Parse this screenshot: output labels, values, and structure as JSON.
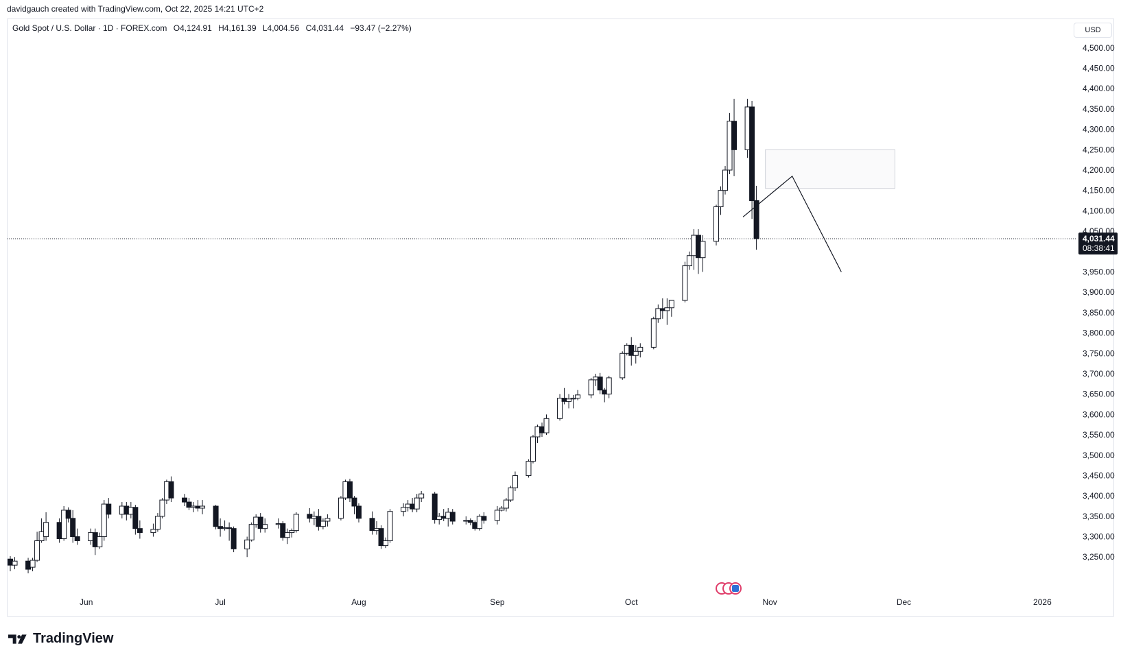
{
  "credit": "davidgauch created with TradingView.com, Oct 22, 2025 14:21 UTC+2",
  "legend": {
    "symbol": "Gold Spot / U.S. Dollar · 1D · FOREX.com",
    "open": "O4,124.91",
    "high": "H4,161.39",
    "low": "L4,004.56",
    "close": "C4,031.44",
    "change": "−93.47 (−2.27%)"
  },
  "currency_button": "USD",
  "last_price_label": {
    "price": "4,031.44",
    "countdown": "08:38:41"
  },
  "brand": "TradingView",
  "chart_data": {
    "type": "candlestick",
    "y_range": [
      3210,
      4530
    ],
    "y_ticks": [
      3250,
      3300,
      3350,
      3400,
      3450,
      3500,
      3550,
      3600,
      3650,
      3700,
      3750,
      3800,
      3850,
      3900,
      3950,
      4050,
      4100,
      4150,
      4200,
      4250,
      4300,
      4350,
      4400,
      4450,
      4500
    ],
    "y_tick_labels": [
      "3,250.00",
      "3,300.00",
      "3,350.00",
      "3,400.00",
      "3,450.00",
      "3,500.00",
      "3,550.00",
      "3,600.00",
      "3,650.00",
      "3,700.00",
      "3,750.00",
      "3,800.00",
      "3,850.00",
      "3,900.00",
      "3,950.00",
      "4,050.00",
      "4,100.00",
      "4,150.00",
      "4,200.00",
      "4,250.00",
      "4,300.00",
      "4,350.00",
      "4,400.00",
      "4,450.00",
      "4,500.00"
    ],
    "x_range": [
      "2025-05-15",
      "2026-01-08"
    ],
    "x_ticks": [
      {
        "date": "2025-06-01",
        "label": "Jun"
      },
      {
        "date": "2025-07-01",
        "label": "Jul"
      },
      {
        "date": "2025-08-01",
        "label": "Aug"
      },
      {
        "date": "2025-09-01",
        "label": "Sep"
      },
      {
        "date": "2025-10-01",
        "label": "Oct"
      },
      {
        "date": "2025-11-01",
        "label": "Nov"
      },
      {
        "date": "2025-12-01",
        "label": "Dec"
      },
      {
        "date": "2026-01-01",
        "label": "2026"
      }
    ],
    "last_close": 4031.44,
    "candles": [
      {
        "date": "2025-05-15",
        "o": 3245,
        "h": 3252,
        "l": 3215,
        "c": 3230
      },
      {
        "date": "2025-05-16",
        "o": 3230,
        "h": 3250,
        "l": 3220,
        "c": 3240
      },
      {
        "date": "2025-05-19",
        "o": 3240,
        "h": 3248,
        "l": 3210,
        "c": 3220
      },
      {
        "date": "2025-05-20",
        "o": 3225,
        "h": 3248,
        "l": 3215,
        "c": 3242
      },
      {
        "date": "2025-05-21",
        "o": 3242,
        "h": 3312,
        "l": 3238,
        "c": 3290
      },
      {
        "date": "2025-05-22",
        "o": 3290,
        "h": 3345,
        "l": 3285,
        "c": 3312
      },
      {
        "date": "2025-05-23",
        "o": 3300,
        "h": 3360,
        "l": 3290,
        "c": 3335
      },
      {
        "date": "2025-05-26",
        "o": 3335,
        "h": 3345,
        "l": 3285,
        "c": 3295
      },
      {
        "date": "2025-05-27",
        "o": 3295,
        "h": 3375,
        "l": 3290,
        "c": 3365
      },
      {
        "date": "2025-05-28",
        "o": 3365,
        "h": 3372,
        "l": 3335,
        "c": 3345
      },
      {
        "date": "2025-05-29",
        "o": 3345,
        "h": 3365,
        "l": 3285,
        "c": 3300
      },
      {
        "date": "2025-05-30",
        "o": 3300,
        "h": 3320,
        "l": 3280,
        "c": 3290
      },
      {
        "date": "2025-06-02",
        "o": 3290,
        "h": 3320,
        "l": 3280,
        "c": 3310
      },
      {
        "date": "2025-06-03",
        "o": 3310,
        "h": 3320,
        "l": 3255,
        "c": 3275
      },
      {
        "date": "2025-06-04",
        "o": 3275,
        "h": 3310,
        "l": 3270,
        "c": 3300
      },
      {
        "date": "2025-06-05",
        "o": 3300,
        "h": 3390,
        "l": 3290,
        "c": 3380
      },
      {
        "date": "2025-06-06",
        "o": 3380,
        "h": 3395,
        "l": 3345,
        "c": 3355
      },
      {
        "date": "2025-06-09",
        "o": 3355,
        "h": 3385,
        "l": 3345,
        "c": 3375
      },
      {
        "date": "2025-06-10",
        "o": 3375,
        "h": 3385,
        "l": 3340,
        "c": 3355
      },
      {
        "date": "2025-06-11",
        "o": 3355,
        "h": 3385,
        "l": 3345,
        "c": 3372
      },
      {
        "date": "2025-06-12",
        "o": 3372,
        "h": 3378,
        "l": 3305,
        "c": 3320
      },
      {
        "date": "2025-06-13",
        "o": 3320,
        "h": 3340,
        "l": 3295,
        "c": 3310
      },
      {
        "date": "2025-06-16",
        "o": 3310,
        "h": 3332,
        "l": 3300,
        "c": 3318
      },
      {
        "date": "2025-06-17",
        "o": 3318,
        "h": 3358,
        "l": 3312,
        "c": 3350
      },
      {
        "date": "2025-06-18",
        "o": 3350,
        "h": 3395,
        "l": 3345,
        "c": 3390
      },
      {
        "date": "2025-06-19",
        "o": 3390,
        "h": 3440,
        "l": 3380,
        "c": 3435
      },
      {
        "date": "2025-06-20",
        "o": 3435,
        "h": 3448,
        "l": 3385,
        "c": 3395
      },
      {
        "date": "2025-06-23",
        "o": 3395,
        "h": 3405,
        "l": 3375,
        "c": 3385
      },
      {
        "date": "2025-06-24",
        "o": 3385,
        "h": 3395,
        "l": 3365,
        "c": 3372
      },
      {
        "date": "2025-06-25",
        "o": 3372,
        "h": 3385,
        "l": 3360,
        "c": 3375
      },
      {
        "date": "2025-06-26",
        "o": 3375,
        "h": 3390,
        "l": 3362,
        "c": 3370
      },
      {
        "date": "2025-06-27",
        "o": 3370,
        "h": 3390,
        "l": 3355,
        "c": 3375
      },
      {
        "date": "2025-06-30",
        "o": 3375,
        "h": 3378,
        "l": 3318,
        "c": 3325
      },
      {
        "date": "2025-07-01",
        "o": 3325,
        "h": 3345,
        "l": 3300,
        "c": 3320
      },
      {
        "date": "2025-07-02",
        "o": 3320,
        "h": 3340,
        "l": 3315,
        "c": 3322
      },
      {
        "date": "2025-07-03",
        "o": 3322,
        "h": 3335,
        "l": 3290,
        "c": 3320
      },
      {
        "date": "2025-07-04",
        "o": 3320,
        "h": 3325,
        "l": 3262,
        "c": 3270
      },
      {
        "date": "2025-07-07",
        "o": 3270,
        "h": 3300,
        "l": 3250,
        "c": 3292
      },
      {
        "date": "2025-07-08",
        "o": 3292,
        "h": 3335,
        "l": 3288,
        "c": 3330
      },
      {
        "date": "2025-07-09",
        "o": 3330,
        "h": 3355,
        "l": 3322,
        "c": 3348
      },
      {
        "date": "2025-07-10",
        "o": 3348,
        "h": 3358,
        "l": 3310,
        "c": 3320
      },
      {
        "date": "2025-07-11",
        "o": 3320,
        "h": 3345,
        "l": 3310,
        "c": 3330
      },
      {
        "date": "2025-07-14",
        "o": 3330,
        "h": 3345,
        "l": 3320,
        "c": 3332
      },
      {
        "date": "2025-07-15",
        "o": 3332,
        "h": 3338,
        "l": 3290,
        "c": 3298
      },
      {
        "date": "2025-07-16",
        "o": 3298,
        "h": 3320,
        "l": 3282,
        "c": 3310
      },
      {
        "date": "2025-07-17",
        "o": 3310,
        "h": 3320,
        "l": 3298,
        "c": 3315
      },
      {
        "date": "2025-07-18",
        "o": 3315,
        "h": 3360,
        "l": 3310,
        "c": 3355
      },
      {
        "date": "2025-07-21",
        "o": 3355,
        "h": 3370,
        "l": 3335,
        "c": 3345
      },
      {
        "date": "2025-07-22",
        "o": 3345,
        "h": 3362,
        "l": 3328,
        "c": 3350
      },
      {
        "date": "2025-07-23",
        "o": 3350,
        "h": 3368,
        "l": 3315,
        "c": 3325
      },
      {
        "date": "2025-07-24",
        "o": 3325,
        "h": 3345,
        "l": 3318,
        "c": 3338
      },
      {
        "date": "2025-07-25",
        "o": 3338,
        "h": 3355,
        "l": 3325,
        "c": 3345
      },
      {
        "date": "2025-07-28",
        "o": 3345,
        "h": 3400,
        "l": 3340,
        "c": 3395
      },
      {
        "date": "2025-07-29",
        "o": 3395,
        "h": 3440,
        "l": 3390,
        "c": 3435
      },
      {
        "date": "2025-07-30",
        "o": 3435,
        "h": 3442,
        "l": 3385,
        "c": 3395
      },
      {
        "date": "2025-07-31",
        "o": 3395,
        "h": 3400,
        "l": 3355,
        "c": 3375
      },
      {
        "date": "2025-08-01",
        "o": 3375,
        "h": 3382,
        "l": 3335,
        "c": 3345
      },
      {
        "date": "2025-08-04",
        "o": 3345,
        "h": 3362,
        "l": 3305,
        "c": 3315
      },
      {
        "date": "2025-08-05",
        "o": 3315,
        "h": 3338,
        "l": 3305,
        "c": 3320
      },
      {
        "date": "2025-08-06",
        "o": 3320,
        "h": 3328,
        "l": 3270,
        "c": 3278
      },
      {
        "date": "2025-08-07",
        "o": 3278,
        "h": 3298,
        "l": 3272,
        "c": 3290
      },
      {
        "date": "2025-08-08",
        "o": 3290,
        "h": 3368,
        "l": 3285,
        "c": 3362
      },
      {
        "date": "2025-08-11",
        "o": 3362,
        "h": 3382,
        "l": 3350,
        "c": 3372
      },
      {
        "date": "2025-08-12",
        "o": 3372,
        "h": 3390,
        "l": 3362,
        "c": 3380
      },
      {
        "date": "2025-08-13",
        "o": 3380,
        "h": 3395,
        "l": 3360,
        "c": 3368
      },
      {
        "date": "2025-08-14",
        "o": 3368,
        "h": 3405,
        "l": 3360,
        "c": 3395
      },
      {
        "date": "2025-08-15",
        "o": 3395,
        "h": 3412,
        "l": 3385,
        "c": 3405
      },
      {
        "date": "2025-08-18",
        "o": 3405,
        "h": 3410,
        "l": 3332,
        "c": 3342
      },
      {
        "date": "2025-08-19",
        "o": 3342,
        "h": 3358,
        "l": 3330,
        "c": 3350
      },
      {
        "date": "2025-08-20",
        "o": 3350,
        "h": 3368,
        "l": 3338,
        "c": 3345
      },
      {
        "date": "2025-08-21",
        "o": 3345,
        "h": 3370,
        "l": 3325,
        "c": 3360
      },
      {
        "date": "2025-08-22",
        "o": 3360,
        "h": 3368,
        "l": 3330,
        "c": 3338
      },
      {
        "date": "2025-08-25",
        "o": 3338,
        "h": 3350,
        "l": 3330,
        "c": 3340
      },
      {
        "date": "2025-08-26",
        "o": 3340,
        "h": 3345,
        "l": 3328,
        "c": 3335
      },
      {
        "date": "2025-08-27",
        "o": 3335,
        "h": 3340,
        "l": 3315,
        "c": 3320
      },
      {
        "date": "2025-08-28",
        "o": 3320,
        "h": 3355,
        "l": 3315,
        "c": 3350
      },
      {
        "date": "2025-08-29",
        "o": 3350,
        "h": 3360,
        "l": 3332,
        "c": 3340
      },
      {
        "date": "2025-09-01",
        "o": 3340,
        "h": 3375,
        "l": 3330,
        "c": 3365
      },
      {
        "date": "2025-09-02",
        "o": 3365,
        "h": 3375,
        "l": 3362,
        "c": 3370
      },
      {
        "date": "2025-09-03",
        "o": 3370,
        "h": 3395,
        "l": 3362,
        "c": 3390
      },
      {
        "date": "2025-09-04",
        "o": 3390,
        "h": 3425,
        "l": 3385,
        "c": 3420
      },
      {
        "date": "2025-09-05",
        "o": 3420,
        "h": 3460,
        "l": 3412,
        "c": 3450
      },
      {
        "date": "2025-09-08",
        "o": 3450,
        "h": 3490,
        "l": 3445,
        "c": 3485
      },
      {
        "date": "2025-09-09",
        "o": 3485,
        "h": 3550,
        "l": 3480,
        "c": 3545
      },
      {
        "date": "2025-09-10",
        "o": 3545,
        "h": 3575,
        "l": 3530,
        "c": 3570
      },
      {
        "date": "2025-09-11",
        "o": 3570,
        "h": 3580,
        "l": 3545,
        "c": 3555
      },
      {
        "date": "2025-09-12",
        "o": 3555,
        "h": 3600,
        "l": 3550,
        "c": 3590
      },
      {
        "date": "2025-09-15",
        "o": 3590,
        "h": 3650,
        "l": 3585,
        "c": 3640
      },
      {
        "date": "2025-09-16",
        "o": 3640,
        "h": 3665,
        "l": 3625,
        "c": 3632
      },
      {
        "date": "2025-09-17",
        "o": 3632,
        "h": 3650,
        "l": 3615,
        "c": 3638
      },
      {
        "date": "2025-09-18",
        "o": 3638,
        "h": 3648,
        "l": 3615,
        "c": 3640
      },
      {
        "date": "2025-09-19",
        "o": 3640,
        "h": 3660,
        "l": 3635,
        "c": 3648
      },
      {
        "date": "2025-09-22",
        "o": 3648,
        "h": 3690,
        "l": 3640,
        "c": 3685
      },
      {
        "date": "2025-09-23",
        "o": 3685,
        "h": 3700,
        "l": 3670,
        "c": 3692
      },
      {
        "date": "2025-09-24",
        "o": 3692,
        "h": 3702,
        "l": 3650,
        "c": 3660
      },
      {
        "date": "2025-09-25",
        "o": 3660,
        "h": 3665,
        "l": 3630,
        "c": 3650
      },
      {
        "date": "2025-09-26",
        "o": 3650,
        "h": 3695,
        "l": 3640,
        "c": 3690
      },
      {
        "date": "2025-09-29",
        "o": 3690,
        "h": 3755,
        "l": 3685,
        "c": 3750
      },
      {
        "date": "2025-09-30",
        "o": 3750,
        "h": 3775,
        "l": 3745,
        "c": 3770
      },
      {
        "date": "2025-10-01",
        "o": 3770,
        "h": 3790,
        "l": 3720,
        "c": 3745
      },
      {
        "date": "2025-10-02",
        "o": 3745,
        "h": 3770,
        "l": 3725,
        "c": 3755
      },
      {
        "date": "2025-10-03",
        "o": 3755,
        "h": 3775,
        "l": 3740,
        "c": 3765
      },
      {
        "date": "2025-10-06",
        "o": 3765,
        "h": 3840,
        "l": 3760,
        "c": 3835
      },
      {
        "date": "2025-10-07",
        "o": 3835,
        "h": 3870,
        "l": 3825,
        "c": 3860
      },
      {
        "date": "2025-10-08",
        "o": 3860,
        "h": 3885,
        "l": 3835,
        "c": 3855
      },
      {
        "date": "2025-10-09",
        "o": 3855,
        "h": 3885,
        "l": 3820,
        "c": 3862
      },
      {
        "date": "2025-10-10",
        "o": 3862,
        "h": 3880,
        "l": 3840,
        "c": 3880
      },
      {
        "date": "2025-10-13",
        "o": 3880,
        "h": 3975,
        "l": 3875,
        "c": 3965
      },
      {
        "date": "2025-10-14",
        "o": 3965,
        "h": 4000,
        "l": 3955,
        "c": 3990
      },
      {
        "date": "2025-10-15",
        "o": 3990,
        "h": 4055,
        "l": 3955,
        "c": 4040
      },
      {
        "date": "2025-10-16",
        "o": 4040,
        "h": 4055,
        "l": 3945,
        "c": 3985
      },
      {
        "date": "2025-10-17",
        "o": 3985,
        "h": 4040,
        "l": 3950,
        "c": 4025
      },
      {
        "date": "2025-10-20",
        "o": 4025,
        "h": 4115,
        "l": 4015,
        "c": 4110
      },
      {
        "date": "2025-10-21",
        "o": 4110,
        "h": 4160,
        "l": 4090,
        "c": 4150
      },
      {
        "date": "2025-10-22",
        "o": 4150,
        "h": 4210,
        "l": 4140,
        "c": 4200
      },
      {
        "date": "2025-10-23",
        "o": 4200,
        "h": 4340,
        "l": 4190,
        "c": 4320
      },
      {
        "date": "2025-10-24",
        "o": 4320,
        "h": 4375,
        "l": 4185,
        "c": 4250
      },
      {
        "date": "2025-10-27",
        "o": 4250,
        "h": 4375,
        "l": 4230,
        "c": 4355
      },
      {
        "date": "2025-10-28",
        "o": 4355,
        "h": 4370,
        "l": 4080,
        "c": 4125
      },
      {
        "date": "2025-10-29",
        "o": 4125,
        "h": 4161.39,
        "l": 4004.56,
        "c": 4031.44
      }
    ],
    "annotations": [
      {
        "type": "rectangle",
        "from": {
          "date": "2025-10-31",
          "price": 4250
        },
        "to": {
          "date": "2025-11-29",
          "price": 4155
        }
      },
      {
        "type": "path",
        "points": [
          {
            "date": "2025-10-26",
            "price": 4085
          },
          {
            "date": "2025-11-06",
            "price": 4185
          },
          {
            "date": "2025-11-17",
            "price": 3950
          }
        ]
      }
    ]
  }
}
